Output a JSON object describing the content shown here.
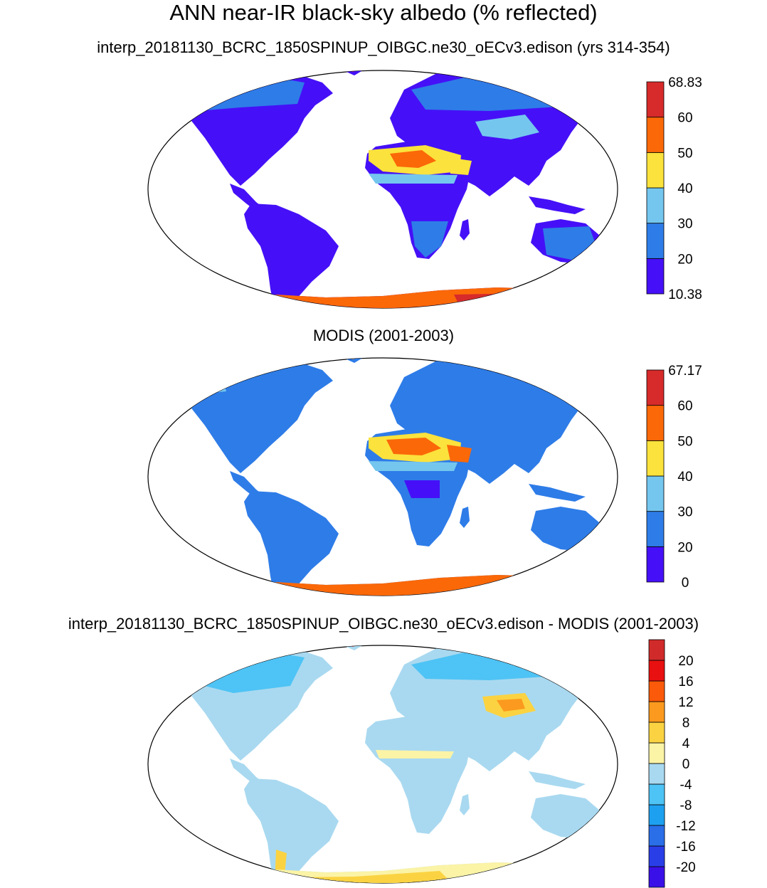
{
  "title": "ANN near-IR black-sky albedo (% reflected)",
  "panels": [
    {
      "id": "model",
      "title": "interp_20181130_BCRC_1850SPINUP_OIBGC.ne30_oECv3.edison (yrs 314-354)",
      "colorbar": {
        "colors": [
          "#4510f7",
          "#2e7ce8",
          "#74c6ef",
          "#fbe23c",
          "#fb6808",
          "#d72a2a"
        ],
        "labels": [
          "10.38",
          "20",
          "30",
          "40",
          "50",
          "60",
          "68.83"
        ]
      }
    },
    {
      "id": "obs",
      "title": "MODIS (2001-2003)",
      "colorbar": {
        "colors": [
          "#4510f7",
          "#2e7ce8",
          "#74c6ef",
          "#fbe23c",
          "#fb6808",
          "#d72a2a"
        ],
        "labels": [
          "0",
          "20",
          "30",
          "40",
          "50",
          "60",
          "67.17"
        ]
      }
    },
    {
      "id": "diff",
      "title": "interp_20181130_BCRC_1850SPINUP_OIBGC.ne30_oECv3.edison - MODIS (2001-2003)",
      "colorbar": {
        "colors": [
          "#3a10e8",
          "#2a3ee8",
          "#2a6ee8",
          "#1ea0f0",
          "#4ec3f5",
          "#a9d9f0",
          "#fbf3a6",
          "#fbd342",
          "#fb9a1e",
          "#fb5a0a",
          "#e81010",
          "#d02a2a"
        ],
        "labels": [
          "-20",
          "-16",
          "-12",
          "-8",
          "-4",
          "0",
          "4",
          "8",
          "12",
          "16",
          "20"
        ]
      }
    }
  ]
}
